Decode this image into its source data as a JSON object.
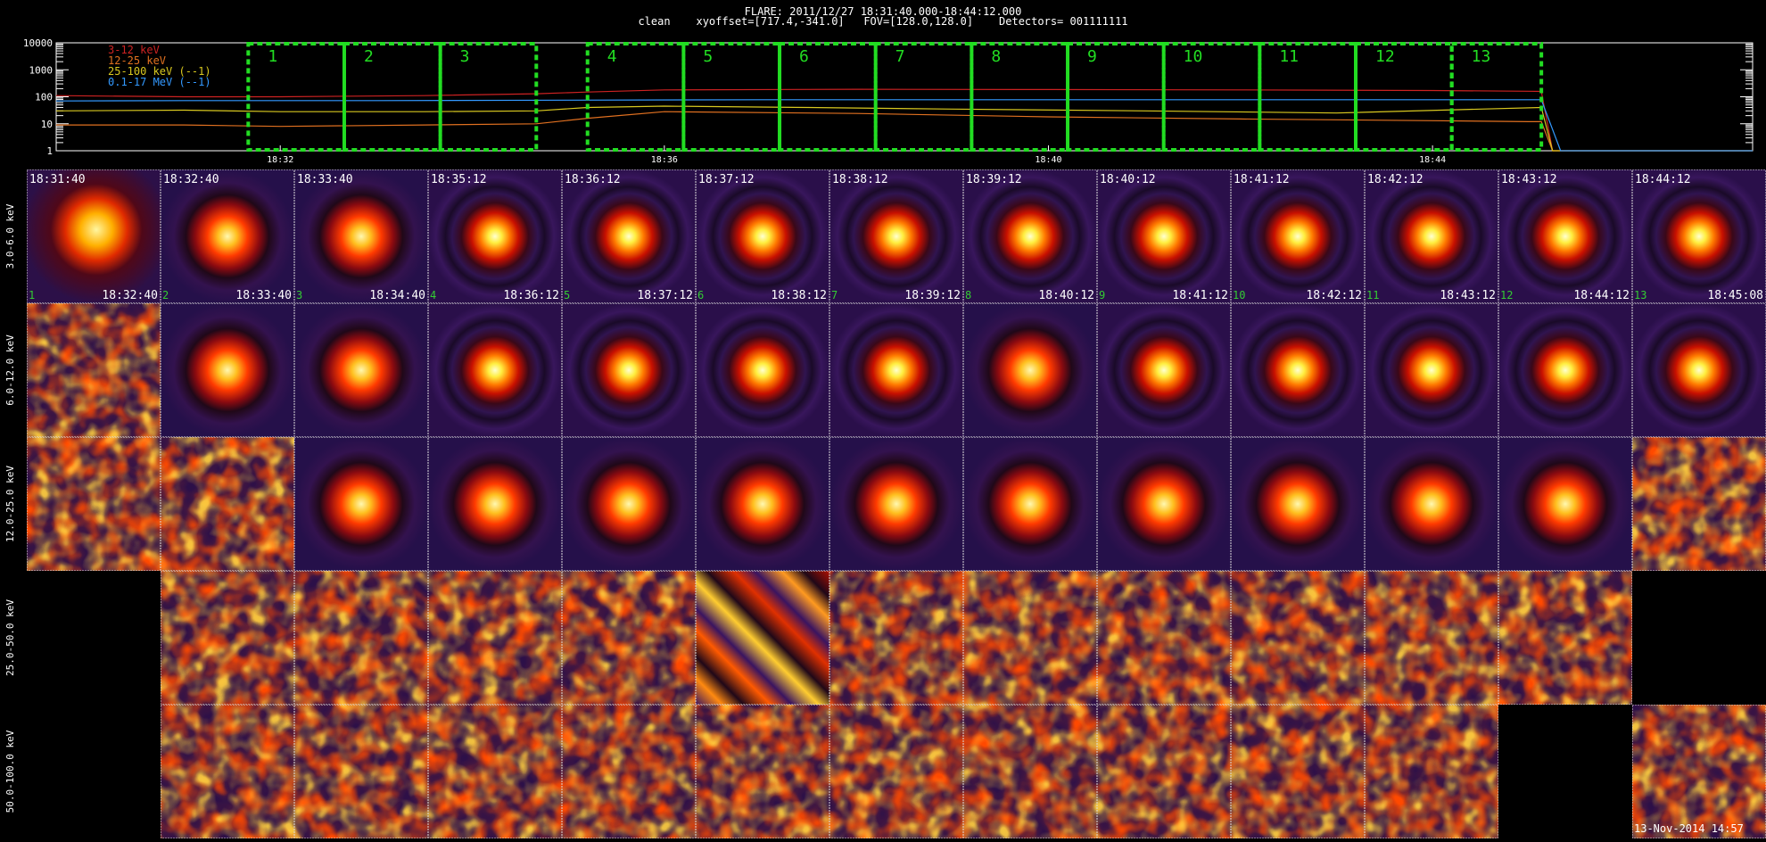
{
  "header": {
    "title": "FLARE: 2011/12/27 18:31:40.000-18:44:12.000",
    "subtitle": "clean    xyoffset=[717.4,-341.0]   FOV=[128.0,128.0]    Detectors= 001111111"
  },
  "footer": {
    "stamp": "13-Nov-2014 14:57"
  },
  "colors": {
    "background": "#000000",
    "interval_box": "#22dd22",
    "grid_dots": "#dddddd",
    "time_start_label": "#ffffff",
    "time_end_label": "#ffffff",
    "interval_number_label": "#33cc33"
  },
  "chart_data": [
    {
      "type": "line",
      "y_scale": "log",
      "ylim": [
        1,
        10000
      ],
      "y_tick_labels": [
        "1",
        "10",
        "100",
        "1000",
        "10000"
      ],
      "x_range": [
        "18:29:40",
        "18:47:20"
      ],
      "x_tick_labels": [
        "18:32",
        "18:36",
        "18:40",
        "18:44"
      ],
      "x_ticks": [
        "18:32",
        "18:36",
        "18:40",
        "18:44"
      ],
      "series": [
        {
          "name": "3-12 keV",
          "color": "#cc2222",
          "t": [
            "18:29:40",
            "18:31:00",
            "18:32:00",
            "18:33:30",
            "18:34:40",
            "18:35:12",
            "18:36:00",
            "18:38:00",
            "18:40:00",
            "18:42:00",
            "18:44:00",
            "18:45:00",
            "18:45:08",
            "18:45:15",
            "18:47:20"
          ],
          "y": [
            110,
            100,
            100,
            110,
            130,
            150,
            180,
            190,
            185,
            180,
            170,
            160,
            158,
            1,
            1
          ]
        },
        {
          "name": "12-25 keV",
          "color": "#e07020",
          "t": [
            "18:29:40",
            "18:31:00",
            "18:32:00",
            "18:33:30",
            "18:34:40",
            "18:35:12",
            "18:36:00",
            "18:38:00",
            "18:40:00",
            "18:42:00",
            "18:44:00",
            "18:45:00",
            "18:45:08",
            "18:45:15",
            "18:47:20"
          ],
          "y": [
            9,
            9,
            8,
            9,
            10,
            16,
            28,
            24,
            18,
            15,
            13,
            12,
            12,
            1,
            1
          ]
        },
        {
          "name": "25-100 keV (--1)",
          "color": "#d8c820",
          "t": [
            "18:29:40",
            "18:31:00",
            "18:32:00",
            "18:33:30",
            "18:34:40",
            "18:35:12",
            "18:36:00",
            "18:37:30",
            "18:39:00",
            "18:41:00",
            "18:43:00",
            "18:44:30",
            "18:45:08",
            "18:45:15",
            "18:47:20"
          ],
          "y": [
            30,
            32,
            28,
            28,
            30,
            40,
            45,
            40,
            35,
            30,
            25,
            35,
            40,
            1,
            1
          ]
        },
        {
          "name": "0.1-17 MeV (--1)",
          "color": "#3399ff",
          "t": [
            "18:29:40",
            "18:31:00",
            "18:33:00",
            "18:35:00",
            "18:37:00",
            "18:40:00",
            "18:43:00",
            "18:45:08",
            "18:45:20",
            "18:47:20"
          ],
          "y": [
            70,
            72,
            72,
            75,
            78,
            78,
            78,
            78,
            1,
            1
          ]
        }
      ],
      "intervals": [
        {
          "label": "1",
          "start": "18:31:40",
          "end": "18:32:40"
        },
        {
          "label": "2",
          "start": "18:32:40",
          "end": "18:33:40"
        },
        {
          "label": "3",
          "start": "18:33:40",
          "end": "18:34:40"
        },
        {
          "label": "4",
          "start": "18:35:12",
          "end": "18:36:12"
        },
        {
          "label": "5",
          "start": "18:36:12",
          "end": "18:37:12"
        },
        {
          "label": "6",
          "start": "18:37:12",
          "end": "18:38:12"
        },
        {
          "label": "7",
          "start": "18:38:12",
          "end": "18:39:12"
        },
        {
          "label": "8",
          "start": "18:39:12",
          "end": "18:40:12"
        },
        {
          "label": "9",
          "start": "18:40:12",
          "end": "18:41:12"
        },
        {
          "label": "10",
          "start": "18:41:12",
          "end": "18:42:12"
        },
        {
          "label": "11",
          "start": "18:42:12",
          "end": "18:43:12"
        },
        {
          "label": "12",
          "start": "18:43:12",
          "end": "18:44:12"
        },
        {
          "label": "13",
          "start": "18:44:12",
          "end": "18:45:08"
        }
      ]
    },
    {
      "type": "heatmap",
      "columns": [
        {
          "index": "1",
          "start": "18:31:40",
          "end": "18:32:40"
        },
        {
          "index": "2",
          "start": "18:32:40",
          "end": "18:33:40"
        },
        {
          "index": "3",
          "start": "18:33:40",
          "end": "18:34:40"
        },
        {
          "index": "4",
          "start": "18:35:12",
          "end": "18:36:12"
        },
        {
          "index": "5",
          "start": "18:36:12",
          "end": "18:37:12"
        },
        {
          "index": "6",
          "start": "18:37:12",
          "end": "18:38:12"
        },
        {
          "index": "7",
          "start": "18:38:12",
          "end": "18:39:12"
        },
        {
          "index": "8",
          "start": "18:39:12",
          "end": "18:40:12"
        },
        {
          "index": "9",
          "start": "18:40:12",
          "end": "18:41:12"
        },
        {
          "index": "10",
          "start": "18:41:12",
          "end": "18:42:12"
        },
        {
          "index": "11",
          "start": "18:42:12",
          "end": "18:43:12"
        },
        {
          "index": "12",
          "start": "18:43:12",
          "end": "18:44:12"
        },
        {
          "index": "13",
          "start": "18:44:12",
          "end": "18:45:08"
        }
      ],
      "rows": [
        {
          "label": "3.0-6.0 keV",
          "panels": [
            "blob",
            "compact",
            "compact",
            "ring",
            "ring",
            "ring",
            "ring",
            "ring",
            "ring",
            "ring",
            "ring",
            "ring",
            "ring"
          ]
        },
        {
          "label": "6.0-12.0 keV",
          "panels": [
            "noise",
            "compact",
            "compact",
            "ring",
            "ring",
            "ring",
            "ring",
            "compact",
            "ring",
            "ring",
            "ring",
            "ring",
            "ring"
          ]
        },
        {
          "label": "12.0-25.0 keV",
          "panels": [
            "noise",
            "noise",
            "compact",
            "compact",
            "compact",
            "compact",
            "compact",
            "compact",
            "compact",
            "compact",
            "compact",
            "compact",
            "noise"
          ]
        },
        {
          "label": "25.0-50.0 keV",
          "panels": [
            "none",
            "noise",
            "noise",
            "noise",
            "noise",
            "stripes",
            "noise",
            "noise",
            "noise",
            "noise",
            "noise",
            "noise",
            "none"
          ]
        },
        {
          "label": "50.0-100.0 keV",
          "panels": [
            "none",
            "noise",
            "noise",
            "noise",
            "noise",
            "noise",
            "noise",
            "noise",
            "noise",
            "noise",
            "noise",
            "none",
            "noise"
          ]
        }
      ]
    }
  ]
}
